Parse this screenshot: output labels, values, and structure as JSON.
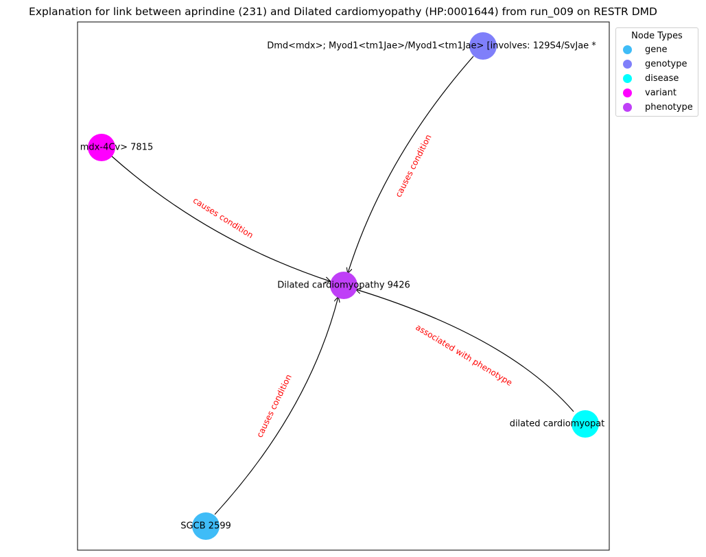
{
  "title": "Explanation for link between aprindine (231) and Dilated cardiomyopathy (HP:0001644) from run_009 on RESTR DMD",
  "legend": {
    "title": "Node Types",
    "items": [
      {
        "label": "gene",
        "color": "#3fbcf7"
      },
      {
        "label": "genotype",
        "color": "#7f7ffa"
      },
      {
        "label": "disease",
        "color": "#00ffff"
      },
      {
        "label": "variant",
        "color": "#ff00ff"
      },
      {
        "label": "phenotype",
        "color": "#bf3ff7"
      }
    ]
  },
  "nodes": [
    {
      "id": "phenotype",
      "label": "Dilated cardiomyopathy 9426",
      "type": "phenotype",
      "color": "#bf3ff7"
    },
    {
      "id": "genotype",
      "label": "Dmd<mdx>; Myod1<tm1Jae>/Myod1<tm1Jae> [involves: 129S4/SvJae *",
      "type": "genotype",
      "color": "#7f7ffa"
    },
    {
      "id": "variant",
      "label": "mdx-4Cv> 7815",
      "type": "variant",
      "color": "#ff00ff"
    },
    {
      "id": "disease",
      "label": "dilated cardiomyopat",
      "type": "disease",
      "color": "#00ffff"
    },
    {
      "id": "gene",
      "label": "SGCB 2599",
      "type": "gene",
      "color": "#3fbcf7"
    }
  ],
  "edges": [
    {
      "source": "variant",
      "target": "phenotype",
      "label": "causes condition"
    },
    {
      "source": "genotype",
      "target": "phenotype",
      "label": "causes condition"
    },
    {
      "source": "disease",
      "target": "phenotype",
      "label": "associated with phenotype"
    },
    {
      "source": "gene",
      "target": "phenotype",
      "label": "causes condition"
    }
  ]
}
